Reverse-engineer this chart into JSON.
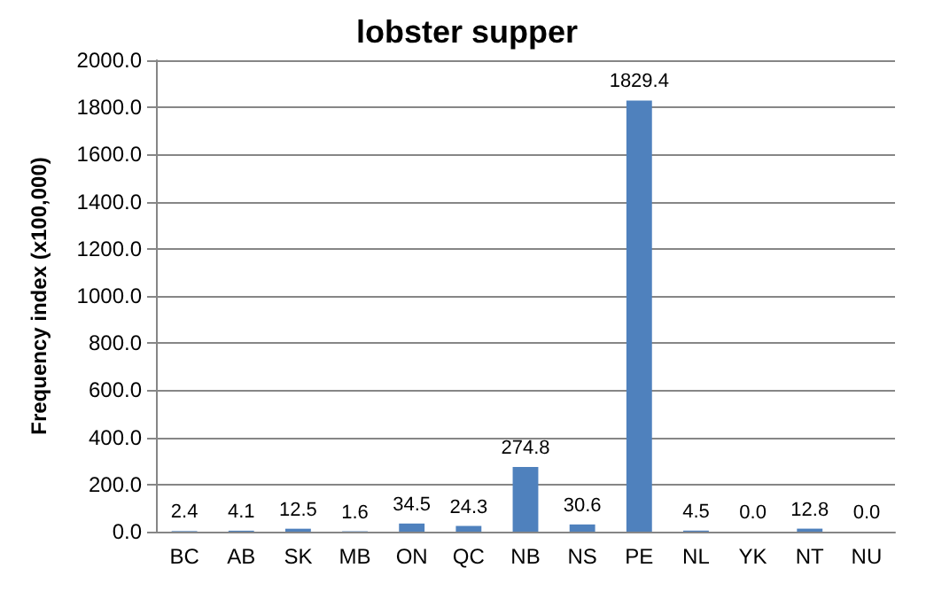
{
  "chart_data": {
    "type": "bar",
    "title": "lobster supper",
    "ylabel": "Frequency index (x100,000)",
    "categories": [
      "BC",
      "AB",
      "SK",
      "MB",
      "ON",
      "QC",
      "NB",
      "NS",
      "PE",
      "NL",
      "YK",
      "NT",
      "NU"
    ],
    "values": [
      2.4,
      4.1,
      12.5,
      1.6,
      34.5,
      24.3,
      274.8,
      30.6,
      1829.4,
      4.5,
      0.0,
      12.8,
      0.0
    ],
    "value_labels": [
      "2.4",
      "4.1",
      "12.5",
      "1.6",
      "34.5",
      "24.3",
      "274.8",
      "30.6",
      "1829.4",
      "4.5",
      "0.0",
      "12.8",
      "0.0"
    ],
    "color": "#4f81bd",
    "ylim": [
      0,
      2000
    ],
    "yticks": [
      {
        "value": 0,
        "label": "0.0"
      },
      {
        "value": 200,
        "label": "200.0"
      },
      {
        "value": 400,
        "label": "400.0"
      },
      {
        "value": 600,
        "label": "600.0"
      },
      {
        "value": 800,
        "label": "800.0"
      },
      {
        "value": 1000,
        "label": "1000.0"
      },
      {
        "value": 1200,
        "label": "1200.0"
      },
      {
        "value": 1400,
        "label": "1400.0"
      },
      {
        "value": 1600,
        "label": "1600.0"
      },
      {
        "value": 1800,
        "label": "1800.0"
      },
      {
        "value": 2000,
        "label": "2000.0"
      }
    ],
    "grid": true
  }
}
